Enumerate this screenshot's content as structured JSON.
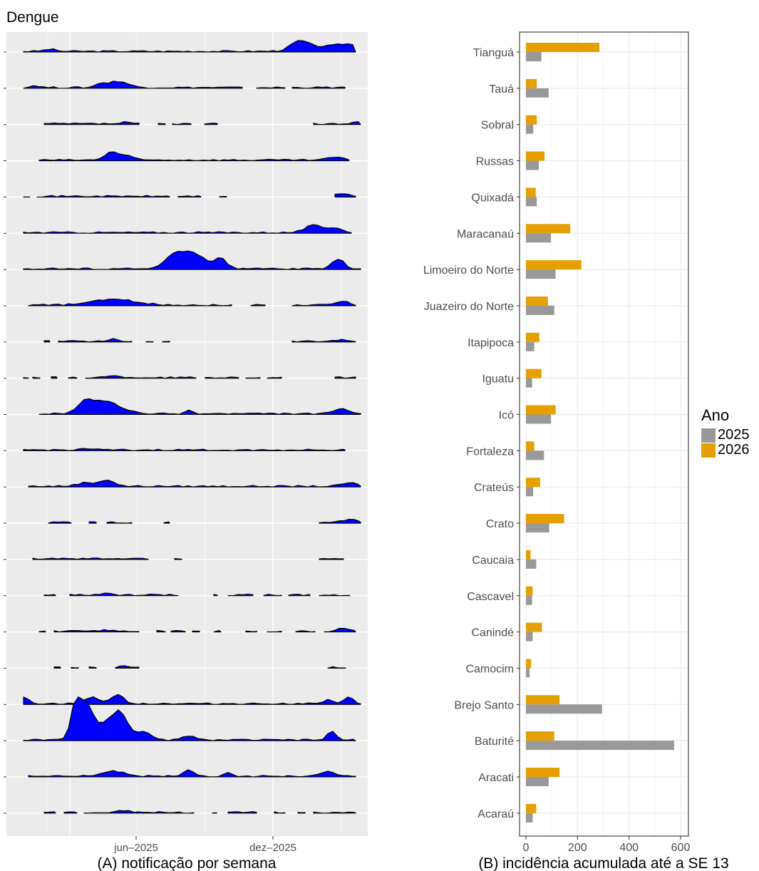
{
  "title": "Dengue",
  "panel_a": {
    "caption": "(A) notificação por semana",
    "x_ticks": [
      "jun–2025",
      "dez–2025"
    ],
    "fill_color": "#0000ff"
  },
  "chart_data": {
    "type": "bar",
    "orientation": "horizontal",
    "xlabel": "(B) incidência acumulada até a SE 13",
    "xlim": [
      0,
      600
    ],
    "x_ticks": [
      0,
      200,
      400,
      600
    ],
    "grid": true,
    "legend": {
      "title": "Ano",
      "position": "right"
    },
    "categories": [
      "Tianguá",
      "Tauá",
      "Sobral",
      "Russas",
      "Quixadá",
      "Maracanaú",
      "Limoeiro do Norte",
      "Juazeiro do Norte",
      "Itapipoca",
      "Iguatu",
      "Icó",
      "Fortaleza",
      "Crateús",
      "Crato",
      "Caucaia",
      "Cascavel",
      "Canindé",
      "Camocim",
      "Brejo Santo",
      "Baturité",
      "Aracati",
      "Acaraú"
    ],
    "series": [
      {
        "name": "2025",
        "color": "#999999",
        "values": [
          60,
          88,
          28,
          50,
          42,
          97,
          115,
          110,
          32,
          24,
          97,
          70,
          28,
          90,
          40,
          24,
          26,
          14,
          295,
          575,
          88,
          26
        ]
      },
      {
        "name": "2026",
        "color": "#E69F00",
        "values": [
          285,
          42,
          42,
          72,
          38,
          172,
          215,
          85,
          52,
          60,
          115,
          32,
          55,
          148,
          18,
          26,
          62,
          20,
          130,
          110,
          130,
          40
        ]
      }
    ]
  }
}
